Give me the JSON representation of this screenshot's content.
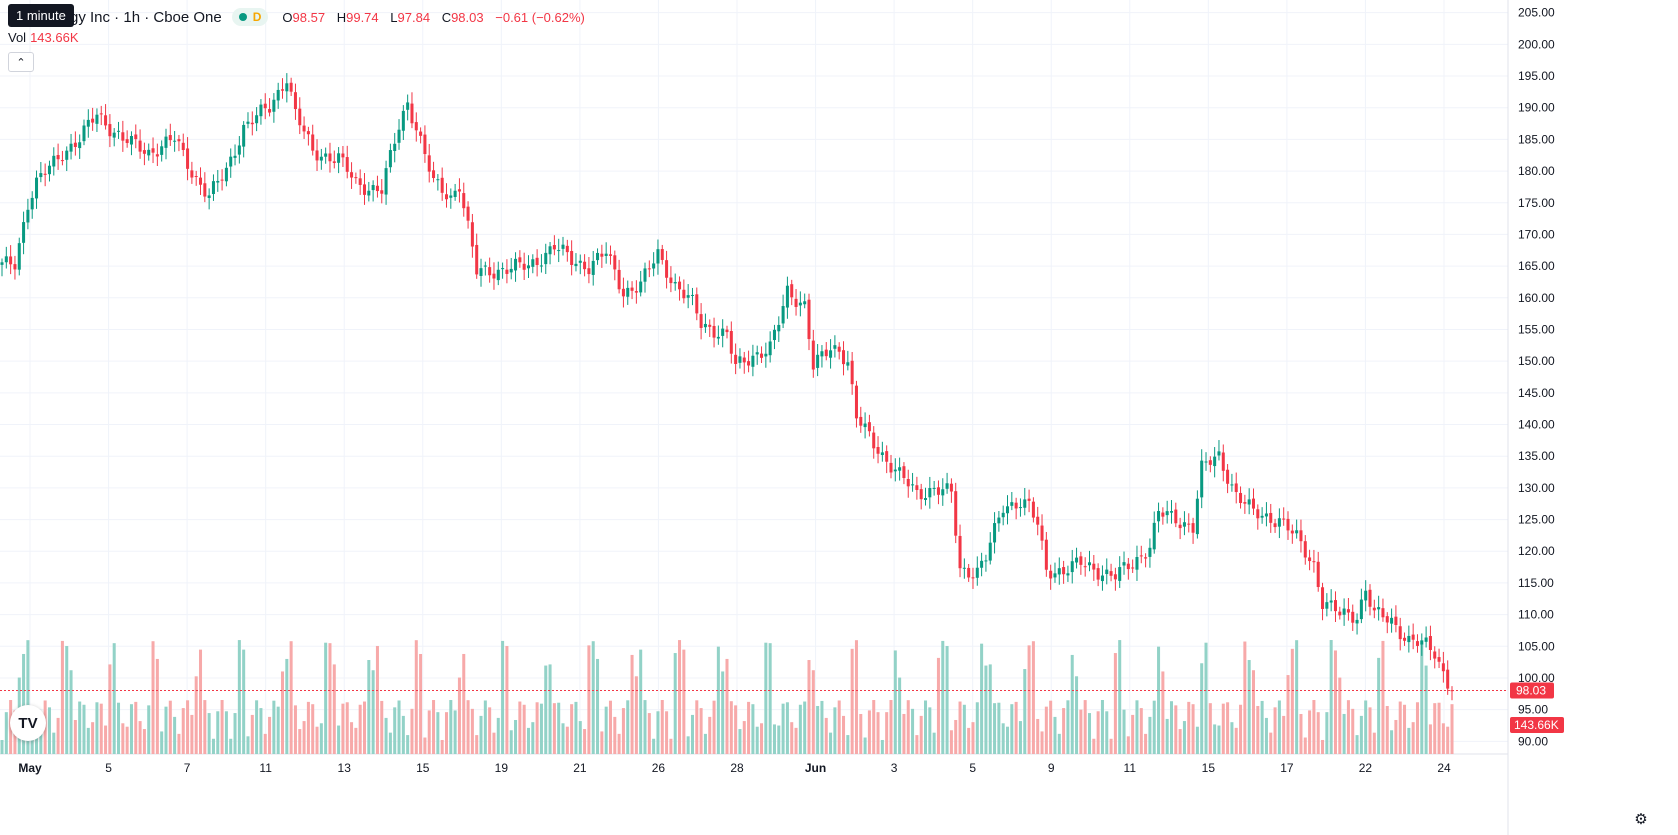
{
  "header": {
    "title": "gy Inc · 1h · Cboe One",
    "interval_tooltip": "1 minute",
    "market_status": "D",
    "ohlc": [
      {
        "key": "O",
        "value": "98.57"
      },
      {
        "key": "H",
        "value": "99.74"
      },
      {
        "key": "L",
        "value": "97.84"
      },
      {
        "key": "C",
        "value": "98.03"
      },
      {
        "key": "",
        "value": "−0.61 (−0.62%)"
      }
    ],
    "volume_label": "Vol",
    "volume_value": "143.66K",
    "collapse_icon": "chevron-up-icon"
  },
  "logo": {
    "text": "TV"
  },
  "colors": {
    "up": "#089981",
    "down": "#f23645",
    "up_vol": "#92d2c7",
    "down_vol": "#f7a9a9",
    "grid": "#f0f3fa",
    "axis_text": "#131722"
  },
  "chart_data": {
    "type": "candlestick",
    "ylim": [
      88,
      207
    ],
    "y_ticks": [
      "205.00",
      "200.00",
      "195.00",
      "190.00",
      "185.00",
      "180.00",
      "175.00",
      "170.00",
      "165.00",
      "160.00",
      "155.00",
      "150.00",
      "145.00",
      "140.00",
      "135.00",
      "130.00",
      "125.00",
      "120.00",
      "115.00",
      "110.00",
      "105.00",
      "100.00",
      "95.00",
      "90.00"
    ],
    "x_ticks": [
      {
        "label": "May",
        "bold": true
      },
      {
        "label": "5"
      },
      {
        "label": "7"
      },
      {
        "label": "11"
      },
      {
        "label": "13"
      },
      {
        "label": "15"
      },
      {
        "label": "19"
      },
      {
        "label": "21"
      },
      {
        "label": "26"
      },
      {
        "label": "28"
      },
      {
        "label": "Jun",
        "bold": true
      },
      {
        "label": "3"
      },
      {
        "label": "5"
      },
      {
        "label": "9"
      },
      {
        "label": "11"
      },
      {
        "label": "15"
      },
      {
        "label": "17"
      },
      {
        "label": "22"
      },
      {
        "label": "24"
      }
    ],
    "last_price": 98.03,
    "last_price_label": "98.03",
    "last_volume_label": "143.66K",
    "anchors": [
      [
        0,
        165
      ],
      [
        3,
        165.5
      ],
      [
        6,
        175
      ],
      [
        8,
        178
      ],
      [
        14,
        183
      ],
      [
        18,
        185
      ],
      [
        22,
        189
      ],
      [
        28,
        185
      ],
      [
        34,
        183
      ],
      [
        40,
        185
      ],
      [
        44,
        180
      ],
      [
        48,
        176
      ],
      [
        52,
        180
      ],
      [
        56,
        187
      ],
      [
        62,
        190
      ],
      [
        66,
        195
      ],
      [
        68,
        189
      ],
      [
        72,
        183
      ],
      [
        78,
        182
      ],
      [
        82,
        178
      ],
      [
        88,
        177
      ],
      [
        92,
        187
      ],
      [
        94,
        191
      ],
      [
        96,
        187
      ],
      [
        100,
        178
      ],
      [
        104,
        176
      ],
      [
        106,
        178
      ],
      [
        110,
        164
      ],
      [
        116,
        164.5
      ],
      [
        122,
        165
      ],
      [
        128,
        168
      ],
      [
        132,
        166
      ],
      [
        136,
        165
      ],
      [
        140,
        167
      ],
      [
        144,
        161
      ],
      [
        148,
        162
      ],
      [
        152,
        167
      ],
      [
        156,
        162
      ],
      [
        160,
        159
      ],
      [
        162,
        156
      ],
      [
        168,
        154
      ],
      [
        170,
        149
      ],
      [
        174,
        151
      ],
      [
        178,
        152
      ],
      [
        180,
        156
      ],
      [
        182,
        161
      ],
      [
        186,
        159
      ],
      [
        188,
        149
      ],
      [
        192,
        152
      ],
      [
        194,
        152
      ],
      [
        196,
        150
      ],
      [
        198,
        141
      ],
      [
        202,
        137
      ],
      [
        208,
        132
      ],
      [
        212,
        129
      ],
      [
        216,
        130
      ],
      [
        220,
        129
      ],
      [
        222,
        117
      ],
      [
        226,
        117
      ],
      [
        228,
        119
      ],
      [
        232,
        127
      ],
      [
        236,
        128
      ],
      [
        238,
        127
      ],
      [
        240,
        124
      ],
      [
        242,
        117
      ],
      [
        246,
        117
      ],
      [
        250,
        118
      ],
      [
        254,
        117
      ],
      [
        258,
        116
      ],
      [
        262,
        118
      ],
      [
        266,
        121
      ],
      [
        268,
        126
      ],
      [
        272,
        125
      ],
      [
        276,
        124
      ],
      [
        278,
        133
      ],
      [
        282,
        135
      ],
      [
        286,
        129
      ],
      [
        290,
        126
      ],
      [
        296,
        125
      ],
      [
        300,
        122
      ],
      [
        304,
        118
      ],
      [
        306,
        112
      ],
      [
        310,
        110
      ],
      [
        314,
        110
      ],
      [
        316,
        114
      ],
      [
        318,
        110
      ],
      [
        322,
        109
      ],
      [
        326,
        106
      ],
      [
        330,
        105
      ],
      [
        332,
        104
      ],
      [
        334,
        101
      ],
      [
        336,
        98.03
      ]
    ]
  }
}
